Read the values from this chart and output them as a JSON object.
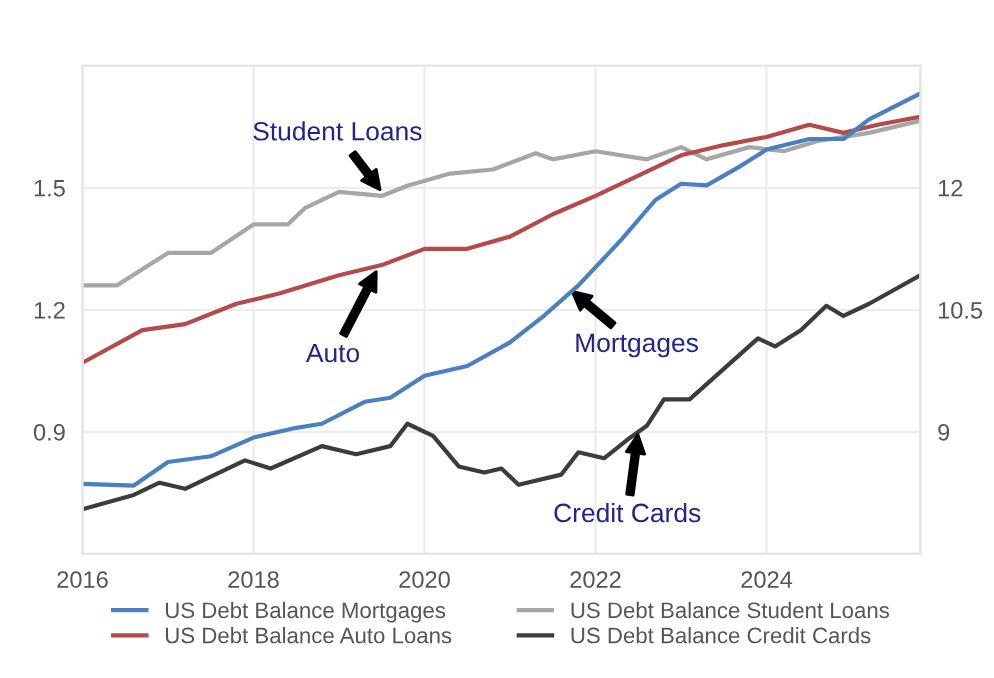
{
  "chart_data": {
    "type": "line",
    "x": [
      2016,
      2016.6,
      2017,
      2017.5,
      2018,
      2018.5,
      2018.8,
      2019.3,
      2019.6,
      2020,
      2020.5,
      2021,
      2021.4,
      2021.8,
      2022.3,
      2022.7,
      2023,
      2023.3,
      2023.7,
      2024,
      2024.5,
      2024.9,
      2025.2,
      2025.8
    ],
    "series": [
      {
        "name": "US Debt Balance Mortgages",
        "color": "#4a7fc1",
        "axis": "y2",
        "values": [
          8.36,
          8.34,
          8.63,
          8.7,
          8.93,
          9.05,
          9.1,
          9.37,
          9.42,
          9.69,
          9.81,
          10.1,
          10.43,
          10.8,
          11.36,
          11.85,
          12.05,
          12.03,
          12.27,
          12.47,
          12.6,
          12.6,
          12.84,
          13.16
        ]
      },
      {
        "name": "US Debt Balance Student Loans",
        "color": "#a6a6a6",
        "x": [
          2016,
          2016.4,
          2017,
          2017.5,
          2018,
          2018.4,
          2018.6,
          2019,
          2019.5,
          2019.8,
          2020.3,
          2020.8,
          2021.3,
          2021.5,
          2022,
          2022.6,
          2023,
          2023.3,
          2023.8,
          2024.2,
          2024.6,
          2025.2,
          2025.8
        ],
        "values": [
          1.26,
          1.26,
          1.34,
          1.34,
          1.41,
          1.41,
          1.45,
          1.49,
          1.48,
          1.505,
          1.535,
          1.545,
          1.585,
          1.57,
          1.59,
          1.57,
          1.6,
          1.57,
          1.6,
          1.59,
          1.615,
          1.635,
          1.665
        ]
      },
      {
        "name": "US Debt Balance Auto Loans",
        "color": "#b5494b",
        "x": [
          2016,
          2016.7,
          2017.2,
          2017.8,
          2018.3,
          2019,
          2019.5,
          2020,
          2020.5,
          2021,
          2021.5,
          2022,
          2022.5,
          2023,
          2023.5,
          2024,
          2024.5,
          2024.9,
          2025.3,
          2025.8
        ],
        "values": [
          1.07,
          1.15,
          1.165,
          1.215,
          1.24,
          1.285,
          1.31,
          1.35,
          1.35,
          1.38,
          1.435,
          1.48,
          1.53,
          1.58,
          1.605,
          1.625,
          1.655,
          1.635,
          1.655,
          1.675
        ]
      },
      {
        "name": "US Debt Balance Credit Cards",
        "color": "#3c3c3c",
        "x": [
          2016,
          2016.6,
          2016.9,
          2017.2,
          2017.9,
          2018.2,
          2018.8,
          2019.2,
          2019.6,
          2019.8,
          2020.1,
          2020.4,
          2020.7,
          2020.9,
          2021.1,
          2021.6,
          2021.8,
          2022.1,
          2022.4,
          2022.6,
          2022.8,
          2023.1,
          2023.5,
          2023.9,
          2024.1,
          2024.4,
          2024.7,
          2024.9,
          2025.2,
          2025.8
        ],
        "values": [
          0.71,
          0.745,
          0.775,
          0.76,
          0.83,
          0.81,
          0.865,
          0.845,
          0.865,
          0.92,
          0.89,
          0.815,
          0.8,
          0.81,
          0.77,
          0.795,
          0.85,
          0.835,
          0.885,
          0.915,
          0.98,
          0.98,
          1.055,
          1.13,
          1.11,
          1.15,
          1.21,
          1.185,
          1.215,
          1.285
        ]
      }
    ],
    "xlim": [
      2016,
      2025.8
    ],
    "xticks": [
      2016,
      2018,
      2020,
      2022,
      2024
    ],
    "ylim": [
      0.6,
      1.8
    ],
    "yticks": [
      0.9,
      1.2,
      1.5
    ],
    "y2lim": [
      7.5,
      13.5
    ],
    "y2ticks": [
      9,
      10.5,
      12
    ],
    "grid": true,
    "legend": "bottom",
    "marker": "none",
    "line_style": "solid",
    "annotations": [
      {
        "text": "Student Loans",
        "x": 2019.5,
        "y": 1.49
      },
      {
        "text": "Auto",
        "x": 2019.45,
        "y": 1.3
      },
      {
        "text": "Mortgages",
        "x": 2021.7,
        "y": 1.25
      },
      {
        "text": "Credit Cards",
        "x": 2022.5,
        "y": 0.9
      }
    ]
  }
}
